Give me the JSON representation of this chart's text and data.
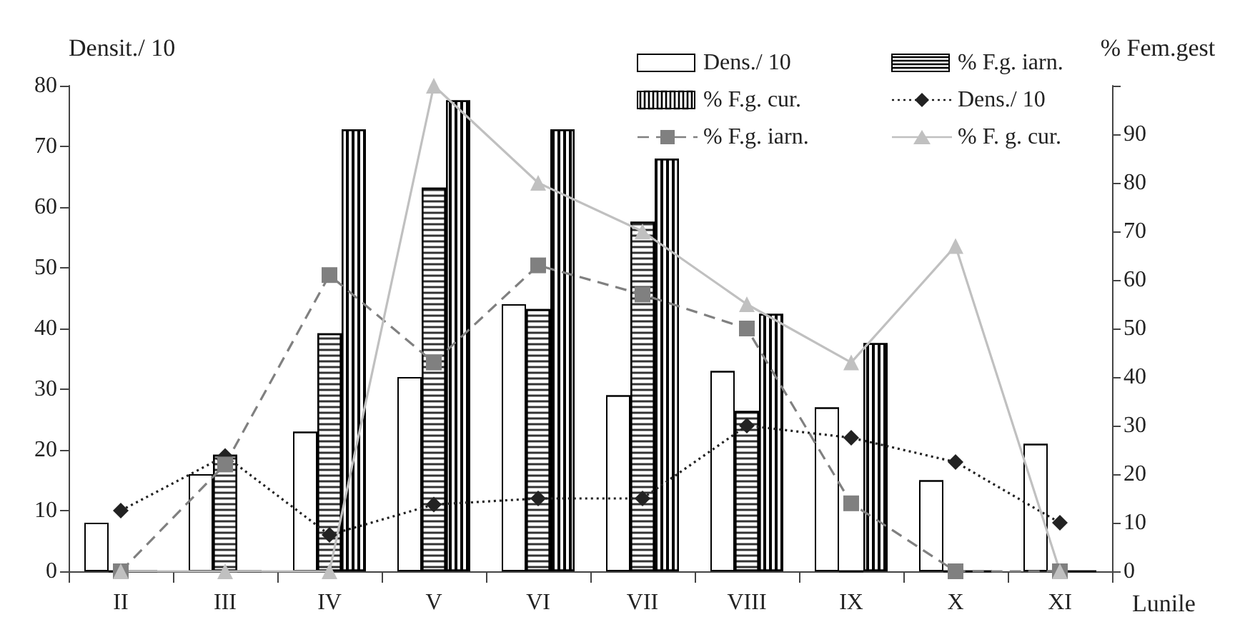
{
  "chart_data": {
    "type": "bar",
    "xlabel": "Lunile",
    "ylabel": "Densit./ 10",
    "y2label": "% Fem.gest",
    "categories": [
      "II",
      "III",
      "IV",
      "V",
      "VI",
      "VII",
      "VIII",
      "IX",
      "X",
      "XI"
    ],
    "series": [
      {
        "name": "Dens./ 10",
        "type": "bar",
        "color": "#ffffff",
        "values": [
          8,
          16,
          23,
          32,
          44,
          29,
          33,
          27,
          15,
          21
        ]
      },
      {
        "name": "% F.g. iarn.",
        "type": "bar",
        "axis": "y2",
        "color": "#000000",
        "values": [
          0,
          24,
          49,
          79,
          54,
          72,
          33,
          0,
          0,
          0
        ]
      },
      {
        "name": "% F.g. cur.",
        "type": "bar",
        "axis": "y2",
        "color": "#000000",
        "values": [
          0,
          0,
          91,
          97,
          91,
          85,
          53,
          47,
          0,
          0
        ]
      },
      {
        "name": "Dens./ 10",
        "type": "line",
        "color": "#222222",
        "marker": "diamond",
        "line_style": "dotted",
        "values": [
          10,
          19,
          6,
          11,
          12,
          12,
          24,
          22,
          18,
          8
        ]
      },
      {
        "name": "% F.g. iarn.",
        "type": "line",
        "axis": "y2",
        "color": "#808080",
        "marker": "square",
        "line_style": "dashed",
        "values": [
          0,
          22,
          61,
          43,
          63,
          57,
          50,
          14,
          0,
          0
        ]
      },
      {
        "name": "% F. g. cur.",
        "type": "line",
        "axis": "y2",
        "color": "#c0c0c0",
        "marker": "triangle",
        "line_style": "solid",
        "values": [
          0,
          0,
          0,
          100,
          80,
          70,
          55,
          43,
          67,
          0
        ]
      }
    ],
    "ylim": [
      0,
      80
    ],
    "yticks": [
      0,
      10,
      20,
      30,
      40,
      50,
      60,
      70,
      80
    ],
    "y2lim": [
      0,
      100
    ],
    "y2ticks": [
      0,
      10,
      20,
      30,
      40,
      50,
      60,
      70,
      80,
      90,
      {
        "value": 100,
        "label": null
      }
    ],
    "grid": false,
    "legend": "top right"
  }
}
